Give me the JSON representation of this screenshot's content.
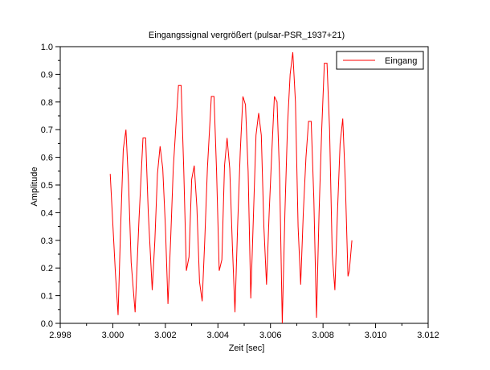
{
  "chart_data": {
    "type": "line",
    "title": "Eingangssignal vergrößert (pulsar-PSR_1937+21)",
    "xlabel": "Zeit [sec]",
    "ylabel": "Amplitude",
    "xlim": [
      2.998,
      3.012
    ],
    "ylim": [
      0.0,
      1.0
    ],
    "x_ticks": [
      2.998,
      3.0,
      3.002,
      3.004,
      3.006,
      3.008,
      3.01,
      3.012
    ],
    "x_tick_labels": [
      "2.998",
      "3.000",
      "3.002",
      "3.004",
      "3.006",
      "3.008",
      "3.010",
      "3.012"
    ],
    "y_ticks": [
      0.0,
      0.1,
      0.2,
      0.3,
      0.4,
      0.5,
      0.6,
      0.7,
      0.8,
      0.9,
      1.0
    ],
    "y_tick_labels": [
      "0.0",
      "0.1",
      "0.2",
      "0.3",
      "0.4",
      "0.5",
      "0.6",
      "0.7",
      "0.8",
      "0.9",
      "1.0"
    ],
    "grid": false,
    "legend_position": "top-right",
    "series": [
      {
        "name": "Eingang",
        "color": "#ff0000",
        "points": [
          [
            2.9999,
            0.54
          ],
          [
            3.0001,
            0.18
          ],
          [
            3.0002,
            0.03
          ],
          [
            3.0003,
            0.35
          ],
          [
            3.0004,
            0.63
          ],
          [
            3.0005,
            0.7
          ],
          [
            3.0006,
            0.5
          ],
          [
            3.0007,
            0.22
          ],
          [
            3.00085,
            0.04
          ],
          [
            3.001,
            0.38
          ],
          [
            3.00115,
            0.67
          ],
          [
            3.00125,
            0.67
          ],
          [
            3.00135,
            0.4
          ],
          [
            3.0015,
            0.12
          ],
          [
            3.0016,
            0.3
          ],
          [
            3.0017,
            0.54
          ],
          [
            3.0018,
            0.64
          ],
          [
            3.0019,
            0.56
          ],
          [
            3.002,
            0.35
          ],
          [
            3.0021,
            0.07
          ],
          [
            3.0022,
            0.3
          ],
          [
            3.0023,
            0.56
          ],
          [
            3.0024,
            0.71
          ],
          [
            3.0025,
            0.86
          ],
          [
            3.0026,
            0.86
          ],
          [
            3.0027,
            0.55
          ],
          [
            3.0028,
            0.19
          ],
          [
            3.0029,
            0.24
          ],
          [
            3.003,
            0.52
          ],
          [
            3.0031,
            0.57
          ],
          [
            3.0032,
            0.42
          ],
          [
            3.0033,
            0.15
          ],
          [
            3.0034,
            0.08
          ],
          [
            3.0035,
            0.3
          ],
          [
            3.0036,
            0.56
          ],
          [
            3.00375,
            0.82
          ],
          [
            3.00385,
            0.82
          ],
          [
            3.00395,
            0.55
          ],
          [
            3.00405,
            0.19
          ],
          [
            3.00415,
            0.23
          ],
          [
            3.00425,
            0.57
          ],
          [
            3.00435,
            0.67
          ],
          [
            3.00445,
            0.56
          ],
          [
            3.00455,
            0.28
          ],
          [
            3.00465,
            0.04
          ],
          [
            3.00475,
            0.35
          ],
          [
            3.00485,
            0.62
          ],
          [
            3.00495,
            0.82
          ],
          [
            3.00505,
            0.79
          ],
          [
            3.00515,
            0.55
          ],
          [
            3.00525,
            0.09
          ],
          [
            3.00535,
            0.38
          ],
          [
            3.00545,
            0.68
          ],
          [
            3.00555,
            0.76
          ],
          [
            3.00565,
            0.68
          ],
          [
            3.00575,
            0.35
          ],
          [
            3.00585,
            0.14
          ],
          [
            3.00595,
            0.4
          ],
          [
            3.00605,
            0.62
          ],
          [
            3.00615,
            0.82
          ],
          [
            3.00625,
            0.8
          ],
          [
            3.00635,
            0.52
          ],
          [
            3.00645,
            0.0
          ],
          [
            3.00655,
            0.4
          ],
          [
            3.00665,
            0.72
          ],
          [
            3.00675,
            0.9
          ],
          [
            3.00685,
            0.98
          ],
          [
            3.00695,
            0.8
          ],
          [
            3.00705,
            0.35
          ],
          [
            3.00715,
            0.14
          ],
          [
            3.00725,
            0.4
          ],
          [
            3.00735,
            0.6
          ],
          [
            3.00745,
            0.73
          ],
          [
            3.00755,
            0.73
          ],
          [
            3.00765,
            0.45
          ],
          [
            3.00775,
            0.02
          ],
          [
            3.00785,
            0.4
          ],
          [
            3.00795,
            0.7
          ],
          [
            3.00805,
            0.94
          ],
          [
            3.00815,
            0.94
          ],
          [
            3.00825,
            0.7
          ],
          [
            3.00835,
            0.25
          ],
          [
            3.00845,
            0.12
          ],
          [
            3.00855,
            0.4
          ],
          [
            3.00865,
            0.65
          ],
          [
            3.00875,
            0.74
          ],
          [
            3.00885,
            0.51
          ],
          [
            3.00895,
            0.17
          ],
          [
            3.009,
            0.19
          ],
          [
            3.0091,
            0.3
          ]
        ]
      }
    ]
  }
}
